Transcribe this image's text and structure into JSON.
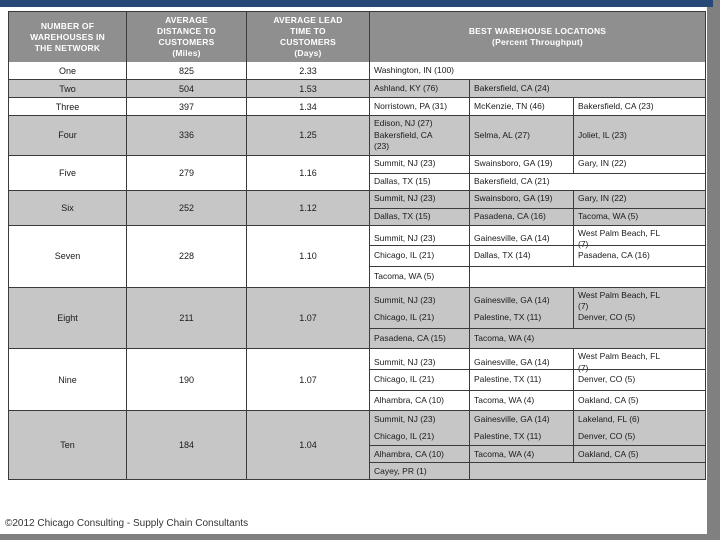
{
  "colors": {
    "top_bar": "#284878",
    "header_bg": "#8f8f8f",
    "row_shaded": "#c6c6c6",
    "page_edge": "#808080"
  },
  "table": {
    "headers": {
      "warehouses": "NUMBER OF\nWAREHOUSES IN\nTHE NETWORK",
      "distance": "AVERAGE\nDISTANCE TO\nCUSTOMERS\n(Miles)",
      "lead_time": "AVERAGE LEAD\nTIME TO\nCUSTOMERS\n(Days)",
      "locations": "BEST WAREHOUSE LOCATIONS\n(Percent Throughput)"
    },
    "rows": [
      {
        "warehouses": "One",
        "distance": "825",
        "lead_time": "2.33",
        "shaded": false,
        "location_subrows": [
          {
            "cells": [
              {
                "text": "Washington, IN (100)",
                "span": 3
              }
            ]
          }
        ]
      },
      {
        "warehouses": "Two",
        "distance": "504",
        "lead_time": "1.53",
        "shaded": true,
        "location_subrows": [
          {
            "cells": [
              {
                "text": "Ashland, KY (76)"
              },
              {
                "text": "Bakersfield, CA (24)",
                "span": 2
              }
            ]
          }
        ]
      },
      {
        "warehouses": "Three",
        "distance": "397",
        "lead_time": "1.34",
        "shaded": false,
        "location_subrows": [
          {
            "cells": [
              {
                "text": "Norristown, PA (31)"
              },
              {
                "text": "McKenzie, TN (46)"
              },
              {
                "text": "Bakersfield, CA (23)"
              }
            ]
          }
        ]
      },
      {
        "warehouses": "Four",
        "distance": "336",
        "lead_time": "1.25",
        "shaded": true,
        "location_subrows": [
          {
            "cells": [
              {
                "text": "Edison, NJ (27)\nBakersfield, CA\n(23)"
              },
              {
                "text": "Selma, AL (27)"
              },
              {
                "text": "Joliet, IL (23)"
              }
            ]
          }
        ]
      },
      {
        "warehouses": "Five",
        "distance": "279",
        "lead_time": "1.16",
        "shaded": false,
        "location_subrows": [
          {
            "cells": [
              {
                "text": "Summit, NJ (23)"
              },
              {
                "text": "Swainsboro, GA (19)"
              },
              {
                "text": "Gary, IN (22)"
              }
            ]
          },
          {
            "cells": [
              {
                "text": "Dallas, TX (15)"
              },
              {
                "text": "Bakersfield, CA (21)",
                "span": 2
              }
            ]
          }
        ]
      },
      {
        "warehouses": "Six",
        "distance": "252",
        "lead_time": "1.12",
        "shaded": true,
        "location_subrows": [
          {
            "cells": [
              {
                "text": "Summit, NJ (23)"
              },
              {
                "text": "Swainsboro, GA (19)"
              },
              {
                "text": "Gary, IN (22)"
              }
            ]
          },
          {
            "cells": [
              {
                "text": "Dallas, TX (15)"
              },
              {
                "text": "Pasadena, CA (16)"
              },
              {
                "text": "Tacoma, WA (5)"
              }
            ]
          }
        ]
      },
      {
        "warehouses": "Seven",
        "distance": "228",
        "lead_time": "1.10",
        "shaded": false,
        "location_subrows": [
          {
            "cells": [
              {
                "text": "Summit, NJ (23)"
              },
              {
                "text": "Gainesville, GA (14)"
              },
              {
                "text": "West Palm Beach, FL\n(7)"
              }
            ]
          },
          {
            "cells": [
              {
                "text": "Chicago, IL (21)"
              },
              {
                "text": "Dallas, TX (14)"
              },
              {
                "text": "Pasadena, CA (16)"
              }
            ]
          },
          {
            "cells": [
              {
                "text": "Tacoma, WA (5)"
              },
              {
                "text": "",
                "span": 2
              }
            ]
          }
        ]
      },
      {
        "warehouses": "Eight",
        "distance": "211",
        "lead_time": "1.07",
        "shaded": true,
        "location_subrows": [
          {
            "cells": [
              {
                "text": "Summit, NJ (23)"
              },
              {
                "text": "Gainesville, GA (14)"
              },
              {
                "text": "West Palm Beach, FL\n(7)"
              }
            ]
          },
          {
            "divider": false,
            "cells": [
              {
                "text": "Chicago, IL (21)"
              },
              {
                "text": "Palestine, TX (11)"
              },
              {
                "text": "Denver, CO (5)"
              }
            ]
          },
          {
            "cells": [
              {
                "text": "Pasadena, CA (15)"
              },
              {
                "text": "Tacoma, WA (4)",
                "span": 2
              }
            ]
          }
        ]
      },
      {
        "warehouses": "Nine",
        "distance": "190",
        "lead_time": "1.07",
        "shaded": false,
        "location_subrows": [
          {
            "cells": [
              {
                "text": "Summit, NJ (23)"
              },
              {
                "text": "Gainesville, GA (14)"
              },
              {
                "text": "West Palm Beach, FL\n(7)"
              }
            ]
          },
          {
            "cells": [
              {
                "text": "Chicago, IL (21)"
              },
              {
                "text": "Palestine, TX (11)"
              },
              {
                "text": "Denver, CO (5)"
              }
            ]
          },
          {
            "cells": [
              {
                "text": "Alhambra, CA (10)"
              },
              {
                "text": "Tacoma, WA (4)"
              },
              {
                "text": "Oakland, CA (5)"
              }
            ]
          }
        ]
      },
      {
        "warehouses": "Ten",
        "distance": "184",
        "lead_time": "1.04",
        "shaded": true,
        "location_subrows": [
          {
            "cells": [
              {
                "text": "Summit, NJ (23)"
              },
              {
                "text": "Gainesville, GA (14)"
              },
              {
                "text": "Lakeland, FL (6)"
              }
            ]
          },
          {
            "divider": false,
            "cells": [
              {
                "text": "Chicago, IL (21)"
              },
              {
                "text": "Palestine, TX (11)"
              },
              {
                "text": "Denver, CO (5)"
              }
            ]
          },
          {
            "cells": [
              {
                "text": "Alhambra, CA (10)"
              },
              {
                "text": "Tacoma, WA (4)"
              },
              {
                "text": "Oakland, CA (5)"
              }
            ]
          },
          {
            "cells": [
              {
                "text": "Cayey, PR (1)"
              },
              {
                "text": "",
                "span": 2
              }
            ]
          }
        ]
      }
    ]
  },
  "footer": {
    "copyright": "©2012 Chicago Consulting - Supply Chain Consultants"
  }
}
